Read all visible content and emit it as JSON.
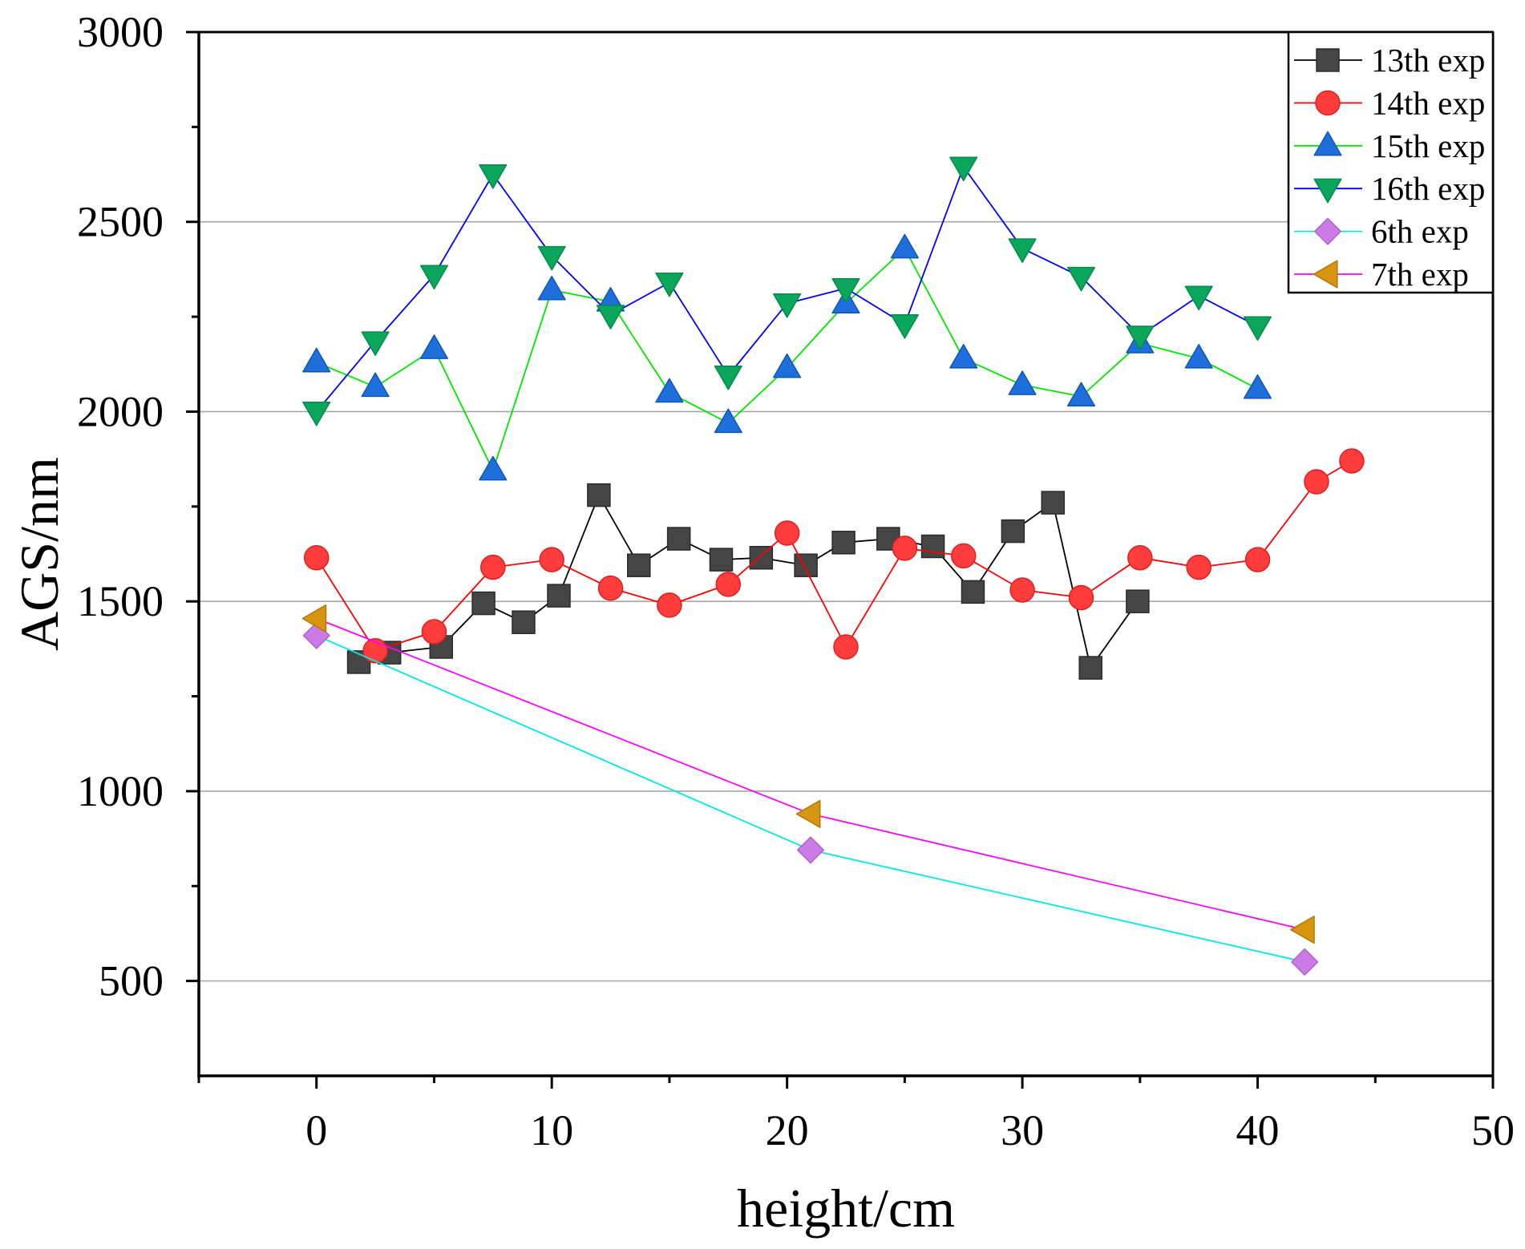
{
  "chart_data": {
    "type": "line",
    "title": "",
    "xlabel": "height/cm",
    "ylabel": "AGS/nm",
    "xlim": [
      -5,
      50
    ],
    "ylim": [
      250,
      3000
    ],
    "x_ticks": [
      0,
      10,
      20,
      30,
      40,
      50
    ],
    "x_minor_ticks": [
      -5,
      5,
      15,
      25,
      35,
      45
    ],
    "y_ticks": [
      500,
      1000,
      1500,
      2000,
      2500,
      3000
    ],
    "y_minor_ticks": [
      750,
      1250,
      1750,
      2250,
      2750
    ],
    "grid": "horizontal",
    "grid_y": [
      500,
      1000,
      1500,
      2000,
      2500
    ],
    "legend": "top-right",
    "series": [
      {
        "name": "13th exp",
        "marker": "square",
        "marker_color": "#454545",
        "marker_edge_color": "#2b2b2b",
        "line_color": "#000000",
        "x": [
          1.8,
          3.1,
          5.3,
          7.1,
          8.8,
          10.3,
          12.0,
          13.7,
          15.4,
          17.2,
          18.9,
          20.8,
          22.4,
          24.3,
          26.2,
          27.9,
          29.6,
          31.3,
          32.9,
          34.9
        ],
        "y": [
          1340,
          1365,
          1380,
          1495,
          1445,
          1515,
          1780,
          1595,
          1665,
          1610,
          1615,
          1595,
          1655,
          1665,
          1645,
          1525,
          1685,
          1760,
          1325,
          1500
        ]
      },
      {
        "name": "14th exp",
        "marker": "circle",
        "marker_color": "#ff3d3d",
        "marker_edge_color": "#e02020",
        "line_color": "#ff0000",
        "x": [
          0,
          2.5,
          5,
          7.5,
          10,
          12.5,
          15,
          17.5,
          20,
          22.5,
          25,
          27.5,
          30,
          32.5,
          35,
          37.5,
          40,
          42.5,
          44
        ],
        "y": [
          1615,
          1370,
          1420,
          1590,
          1610,
          1535,
          1490,
          1545,
          1680,
          1380,
          1640,
          1620,
          1530,
          1510,
          1615,
          1590,
          1610,
          1815,
          1870
        ]
      },
      {
        "name": "15th exp",
        "marker": "triangle-up",
        "marker_color": "#1e6fdc",
        "marker_edge_color": "#0f55b5",
        "line_color": "#00e600",
        "x": [
          0,
          2.5,
          5,
          7.5,
          10,
          12.5,
          15,
          17.5,
          20,
          22.5,
          25,
          27.5,
          30,
          32.5,
          35,
          37.5,
          40
        ],
        "y": [
          2130,
          2065,
          2165,
          1845,
          2320,
          2290,
          2050,
          1970,
          2115,
          2285,
          2430,
          2140,
          2070,
          2040,
          2180,
          2140,
          2060
        ]
      },
      {
        "name": "16th exp",
        "marker": "triangle-down",
        "marker_color": "#0aa65c",
        "marker_edge_color": "#078a4a",
        "line_color": "#0000ff",
        "x": [
          0,
          2.5,
          5,
          7.5,
          10,
          12.5,
          15,
          17.5,
          20,
          22.5,
          25,
          27.5,
          30,
          32.5,
          35,
          37.5,
          40
        ],
        "y": [
          2000,
          2185,
          2360,
          2625,
          2410,
          2255,
          2340,
          2095,
          2285,
          2325,
          2230,
          2645,
          2430,
          2355,
          2200,
          2305,
          2225
        ]
      },
      {
        "name": "6th exp",
        "marker": "diamond",
        "marker_color": "#cc7ae6",
        "marker_edge_color": "#b062cc",
        "line_color": "#00e8e8",
        "x": [
          0,
          21,
          42
        ],
        "y": [
          1410,
          845,
          550
        ]
      },
      {
        "name": "7th exp",
        "marker": "triangle-left",
        "marker_color": "#d69610",
        "marker_edge_color": "#b07808",
        "line_color": "#ff00ff",
        "x": [
          0,
          21,
          42
        ],
        "y": [
          1455,
          940,
          635
        ]
      }
    ]
  }
}
